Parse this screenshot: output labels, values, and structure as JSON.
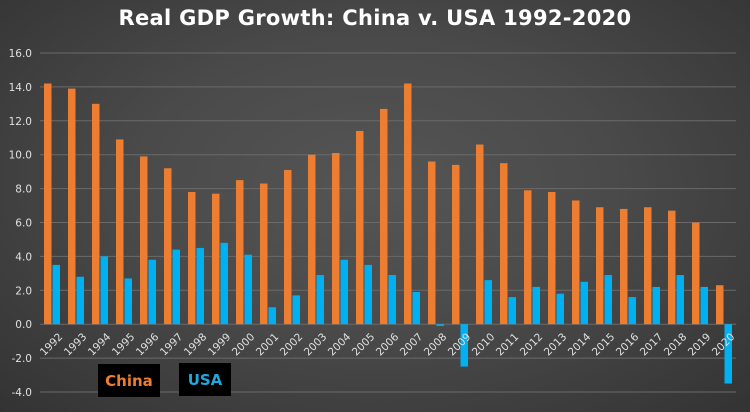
{
  "chart_data": {
    "type": "bar",
    "title": "Real GDP Growth: China v. USA 1992-2020",
    "xlabel": "",
    "ylabel": "",
    "ylim": [
      -4,
      16
    ],
    "yticks": [
      "16.0",
      "14.0",
      "12.0",
      "10.0",
      "8.0",
      "6.0",
      "4.0",
      "2.0",
      "0.0",
      "-2.0",
      "-4.0"
    ],
    "ytick_values": [
      16,
      14,
      12,
      10,
      8,
      6,
      4,
      2,
      0,
      -2,
      -4
    ],
    "grid": true,
    "legend_position": "bottom-left",
    "categories": [
      "1992",
      "1993",
      "1994",
      "1995",
      "1996",
      "1997",
      "1998",
      "1999",
      "2000",
      "2001",
      "2002",
      "2003",
      "2004",
      "2005",
      "2006",
      "2007",
      "2008",
      "2009",
      "2010",
      "2011",
      "2012",
      "2013",
      "2014",
      "2015",
      "2016",
      "2017",
      "2018",
      "2019",
      "2020"
    ],
    "series": [
      {
        "name": "China",
        "color": "#ED7D31",
        "values": [
          14.2,
          13.9,
          13.0,
          10.9,
          9.9,
          9.2,
          7.8,
          7.7,
          8.5,
          8.3,
          9.1,
          10.0,
          10.1,
          11.4,
          12.7,
          14.2,
          9.6,
          9.4,
          10.6,
          9.5,
          7.9,
          7.8,
          7.3,
          6.9,
          6.8,
          6.9,
          6.7,
          6.0,
          2.3
        ]
      },
      {
        "name": "USA",
        "color": "#00B0F0",
        "values": [
          3.5,
          2.8,
          4.0,
          2.7,
          3.8,
          4.4,
          4.5,
          4.8,
          4.1,
          1.0,
          1.7,
          2.9,
          3.8,
          3.5,
          2.9,
          1.9,
          -0.1,
          -2.5,
          2.6,
          1.6,
          2.2,
          1.8,
          2.5,
          2.9,
          1.6,
          2.2,
          2.9,
          2.2,
          -3.5
        ]
      }
    ]
  },
  "legend": {
    "china_label": "China",
    "usa_label": "USA",
    "china_color": "#ED7D31",
    "usa_color": "#1FA8E0"
  }
}
